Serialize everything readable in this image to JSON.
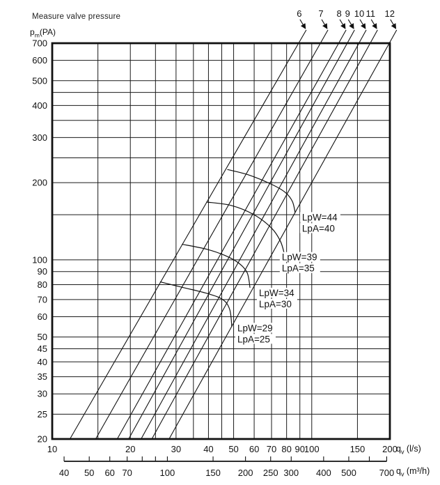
{
  "colors": {
    "ink": "#111111",
    "grid": "#1a1a1a",
    "background": "#ffffff"
  },
  "header": {
    "y_axis_unit": {
      "base": "p",
      "sub": "m",
      "rest": "(PA)"
    }
  },
  "axis_titles": {
    "x_primary": {
      "base": "q",
      "sub": "v",
      "rest": " (l/s)"
    },
    "x_secondary": {
      "base": "q",
      "sub": "v",
      "rest": " (m³/h)"
    }
  },
  "chart_data": {
    "type": "line",
    "title": "Measure valve pressure",
    "xlabel": "qv (l/s)",
    "ylabel": "pm (PA)",
    "x_axis": {
      "scale": "log",
      "min": 10,
      "max": 200,
      "unit": "l/s",
      "gridlines": [
        10,
        15,
        20,
        25,
        30,
        35,
        40,
        45,
        50,
        60,
        70,
        80,
        90,
        100,
        150,
        200
      ],
      "labeled_ticks": [
        10,
        20,
        30,
        40,
        50,
        60,
        70,
        80,
        90,
        100,
        150,
        200
      ]
    },
    "y_axis": {
      "scale": "log",
      "min": 20,
      "max": 700,
      "unit": "PA",
      "gridlines": [
        20,
        25,
        30,
        35,
        40,
        45,
        50,
        60,
        70,
        80,
        90,
        100,
        150,
        200,
        250,
        300,
        350,
        400,
        450,
        500,
        600,
        700
      ],
      "labeled_ticks": [
        20,
        25,
        30,
        35,
        40,
        45,
        50,
        60,
        70,
        80,
        90,
        100,
        200,
        300,
        400,
        500,
        600,
        700
      ]
    },
    "x_axis_secondary": {
      "unit": "m³/h",
      "factor_to_primary": 3.6,
      "ticks": [
        40,
        50,
        60,
        70,
        80,
        90,
        100,
        150,
        200,
        250,
        300,
        400,
        500,
        600,
        700
      ],
      "labeled_ticks": [
        40,
        50,
        60,
        70,
        100,
        150,
        200,
        250,
        300,
        400,
        500,
        700
      ]
    },
    "valve_lines": [
      {
        "label": "6",
        "qv_at_pm_min": 11.7,
        "qv_at_pm_max": 89
      },
      {
        "label": "7",
        "qv_at_pm_min": 14.7,
        "qv_at_pm_max": 108
      },
      {
        "label": "8",
        "qv_at_pm_min": 17.8,
        "qv_at_pm_max": 127
      },
      {
        "label": "9",
        "qv_at_pm_min": 19.7,
        "qv_at_pm_max": 137
      },
      {
        "label": "10",
        "qv_at_pm_min": 22.0,
        "qv_at_pm_max": 152
      },
      {
        "label": "11",
        "qv_at_pm_min": 24.2,
        "qv_at_pm_max": 168
      },
      {
        "label": "12",
        "qv_at_pm_min": 28.2,
        "qv_at_pm_max": 199
      }
    ],
    "noise_curves": [
      {
        "lpw": "LpW=44",
        "lpa": "LpA=40",
        "label_at": [
          91.8,
          146
        ],
        "points": [
          [
            47.4,
            225
          ],
          [
            57.4,
            214
          ],
          [
            70.8,
            196
          ],
          [
            79.2,
            183
          ],
          [
            84.2,
            169
          ],
          [
            86.3,
            153
          ]
        ]
      },
      {
        "lpw": "LpW=39",
        "lpa": "LpA=35",
        "label_at": [
          76.7,
          102
        ],
        "points": [
          [
            39.4,
            168
          ],
          [
            48.9,
            163
          ],
          [
            59.9,
            150
          ],
          [
            70.0,
            133
          ],
          [
            75.8,
            118
          ],
          [
            78.7,
            104
          ]
        ]
      },
      {
        "lpw": "LpW=34",
        "lpa": "LpA=30",
        "label_at": [
          62.6,
          74
        ],
        "points": [
          [
            31.7,
            115
          ],
          [
            39.4,
            110
          ],
          [
            46.3,
            104
          ],
          [
            52.4,
            97
          ],
          [
            56.4,
            89
          ],
          [
            57.8,
            78
          ]
        ]
      },
      {
        "lpw": "LpW=29",
        "lpa": "LpA=25",
        "label_at": [
          51.7,
          54
        ],
        "points": [
          [
            26.1,
            82
          ],
          [
            31.9,
            78
          ],
          [
            39.4,
            74
          ],
          [
            45.4,
            70
          ],
          [
            48.3,
            64
          ],
          [
            49.2,
            55
          ]
        ]
      }
    ]
  }
}
